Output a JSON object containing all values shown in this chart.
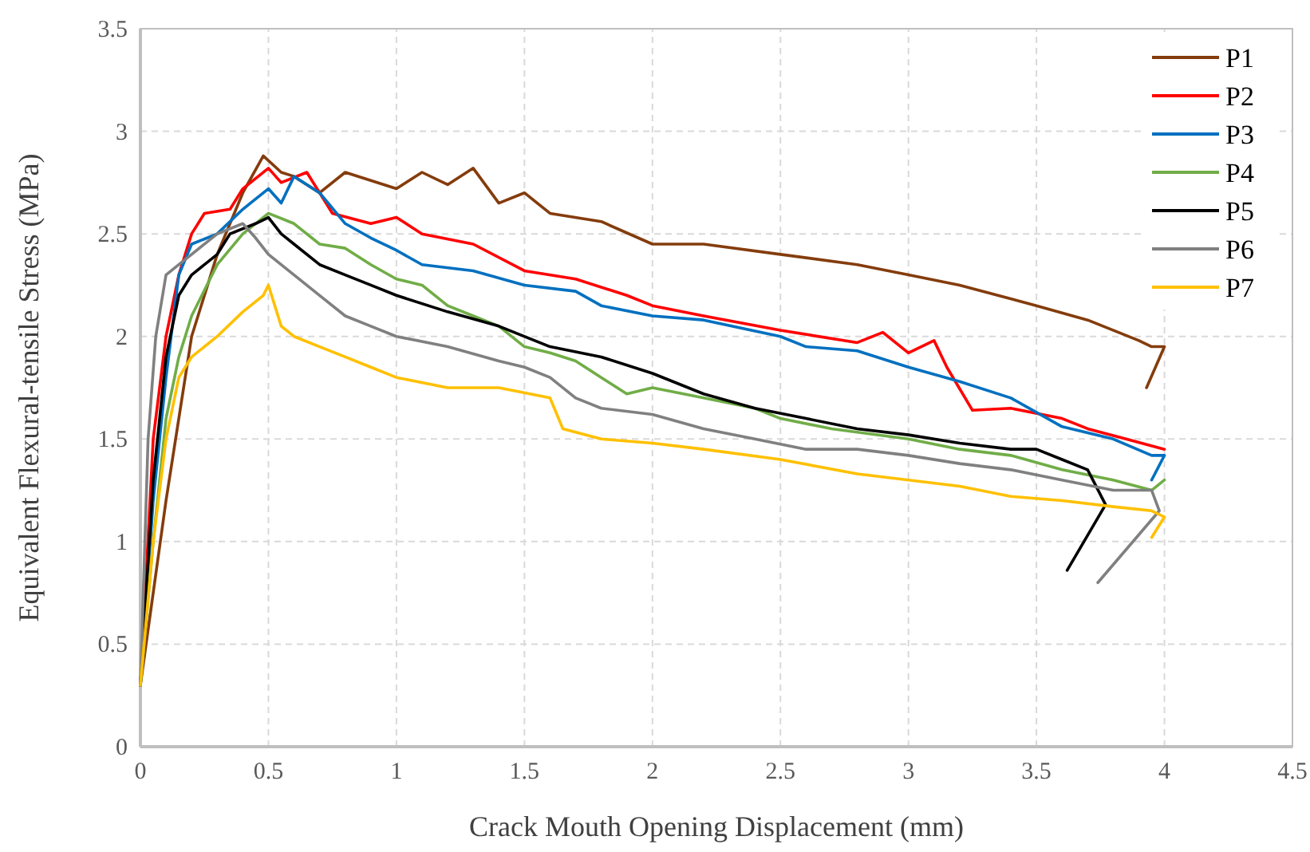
{
  "chart_data": {
    "type": "line",
    "xlabel": "Crack Mouth Opening Displacement (mm)",
    "ylabel": "Equivalent Flexural-tensile Stress (MPa)",
    "xlim": [
      0,
      4.5
    ],
    "xticks": [
      0,
      0.5,
      1,
      1.5,
      2,
      2.5,
      3,
      3.5,
      4,
      4.5
    ],
    "ylim": [
      0,
      3.5
    ],
    "yticks": [
      0,
      0.5,
      1,
      1.5,
      2,
      2.5,
      3,
      3.5
    ],
    "grid": true,
    "legend": "top right",
    "marker": "none",
    "line_style": "solid",
    "series": [
      {
        "name": "P1",
        "color": "#843c0c",
        "x": [
          0,
          0.1,
          0.2,
          0.3,
          0.4,
          0.48,
          0.55,
          0.6,
          0.7,
          0.8,
          0.9,
          1.0,
          1.1,
          1.2,
          1.3,
          1.4,
          1.5,
          1.6,
          1.8,
          2.0,
          2.2,
          2.5,
          2.8,
          3.0,
          3.2,
          3.5,
          3.7,
          3.9,
          3.95,
          4.0,
          3.93
        ],
        "values": [
          0.3,
          1.2,
          2.0,
          2.4,
          2.7,
          2.88,
          2.8,
          2.78,
          2.7,
          2.8,
          2.76,
          2.72,
          2.8,
          2.74,
          2.82,
          2.65,
          2.7,
          2.6,
          2.56,
          2.45,
          2.45,
          2.4,
          2.35,
          2.3,
          2.25,
          2.15,
          2.08,
          1.98,
          1.95,
          1.95,
          1.75
        ]
      },
      {
        "name": "P2",
        "color": "#ff0000",
        "x": [
          0,
          0.05,
          0.1,
          0.15,
          0.2,
          0.25,
          0.35,
          0.4,
          0.5,
          0.55,
          0.65,
          0.75,
          0.9,
          1.0,
          1.1,
          1.3,
          1.5,
          1.7,
          1.9,
          2.0,
          2.2,
          2.5,
          2.8,
          2.9,
          3.0,
          3.1,
          3.15,
          3.25,
          3.4,
          3.6,
          3.7,
          3.85,
          4.0
        ],
        "values": [
          0.3,
          1.5,
          2.0,
          2.3,
          2.5,
          2.6,
          2.62,
          2.72,
          2.82,
          2.75,
          2.8,
          2.6,
          2.55,
          2.58,
          2.5,
          2.45,
          2.32,
          2.28,
          2.2,
          2.15,
          2.1,
          2.03,
          1.97,
          2.02,
          1.92,
          1.98,
          1.85,
          1.64,
          1.65,
          1.6,
          1.55,
          1.5,
          1.45
        ]
      },
      {
        "name": "P3",
        "color": "#0070c0",
        "x": [
          0,
          0.05,
          0.1,
          0.15,
          0.2,
          0.3,
          0.4,
          0.5,
          0.55,
          0.6,
          0.7,
          0.8,
          0.9,
          1.0,
          1.1,
          1.3,
          1.5,
          1.7,
          1.8,
          2.0,
          2.2,
          2.5,
          2.6,
          2.8,
          3.0,
          3.2,
          3.4,
          3.6,
          3.8,
          3.95,
          4.0,
          3.95
        ],
        "values": [
          0.3,
          1.2,
          1.8,
          2.3,
          2.45,
          2.5,
          2.62,
          2.72,
          2.65,
          2.78,
          2.7,
          2.55,
          2.48,
          2.42,
          2.35,
          2.32,
          2.25,
          2.22,
          2.15,
          2.1,
          2.08,
          2.0,
          1.95,
          1.93,
          1.85,
          1.78,
          1.7,
          1.56,
          1.5,
          1.42,
          1.42,
          1.3
        ]
      },
      {
        "name": "P4",
        "color": "#70ad47",
        "x": [
          0,
          0.05,
          0.1,
          0.15,
          0.2,
          0.3,
          0.4,
          0.5,
          0.6,
          0.7,
          0.8,
          0.9,
          1.0,
          1.1,
          1.2,
          1.3,
          1.4,
          1.5,
          1.6,
          1.7,
          1.8,
          1.9,
          2.0,
          2.2,
          2.4,
          2.5,
          2.7,
          3.0,
          3.2,
          3.4,
          3.6,
          3.8,
          3.95,
          4.0
        ],
        "values": [
          0.3,
          1.0,
          1.6,
          1.9,
          2.1,
          2.35,
          2.5,
          2.6,
          2.55,
          2.45,
          2.43,
          2.35,
          2.28,
          2.25,
          2.15,
          2.1,
          2.05,
          1.95,
          1.92,
          1.88,
          1.8,
          1.72,
          1.75,
          1.7,
          1.65,
          1.6,
          1.55,
          1.5,
          1.45,
          1.42,
          1.35,
          1.3,
          1.25,
          1.3
        ]
      },
      {
        "name": "P5",
        "color": "#000000",
        "x": [
          0,
          0.05,
          0.1,
          0.15,
          0.2,
          0.3,
          0.35,
          0.45,
          0.5,
          0.55,
          0.6,
          0.7,
          0.8,
          0.9,
          1.0,
          1.2,
          1.4,
          1.6,
          1.8,
          2.0,
          2.2,
          2.4,
          2.6,
          2.8,
          3.0,
          3.2,
          3.4,
          3.5,
          3.6,
          3.7,
          3.77,
          3.62
        ],
        "values": [
          0.3,
          1.3,
          1.9,
          2.2,
          2.3,
          2.4,
          2.5,
          2.55,
          2.58,
          2.5,
          2.45,
          2.35,
          2.3,
          2.25,
          2.2,
          2.12,
          2.05,
          1.95,
          1.9,
          1.82,
          1.72,
          1.65,
          1.6,
          1.55,
          1.52,
          1.48,
          1.45,
          1.45,
          1.4,
          1.35,
          1.18,
          0.86
        ]
      },
      {
        "name": "P6",
        "color": "#808080",
        "x": [
          0,
          0.03,
          0.06,
          0.1,
          0.15,
          0.2,
          0.3,
          0.4,
          0.45,
          0.5,
          0.6,
          0.7,
          0.8,
          0.9,
          1.0,
          1.2,
          1.4,
          1.5,
          1.6,
          1.7,
          1.8,
          2.0,
          2.2,
          2.4,
          2.6,
          2.8,
          3.0,
          3.2,
          3.4,
          3.6,
          3.8,
          3.95,
          3.98,
          3.74
        ],
        "values": [
          0.3,
          1.5,
          2.0,
          2.3,
          2.35,
          2.4,
          2.5,
          2.55,
          2.48,
          2.4,
          2.3,
          2.2,
          2.1,
          2.05,
          2.0,
          1.95,
          1.88,
          1.85,
          1.8,
          1.7,
          1.65,
          1.62,
          1.55,
          1.5,
          1.45,
          1.45,
          1.42,
          1.38,
          1.35,
          1.3,
          1.25,
          1.25,
          1.15,
          0.8
        ]
      },
      {
        "name": "P7",
        "color": "#ffc000",
        "x": [
          0,
          0.05,
          0.1,
          0.15,
          0.2,
          0.3,
          0.4,
          0.48,
          0.5,
          0.55,
          0.6,
          0.7,
          0.8,
          0.9,
          1.0,
          1.2,
          1.4,
          1.6,
          1.65,
          1.8,
          2.0,
          2.2,
          2.5,
          2.8,
          3.0,
          3.2,
          3.4,
          3.6,
          3.8,
          3.95,
          4.0,
          3.95
        ],
        "values": [
          0.3,
          1.0,
          1.5,
          1.8,
          1.9,
          2.0,
          2.12,
          2.2,
          2.25,
          2.05,
          2.0,
          1.95,
          1.9,
          1.85,
          1.8,
          1.75,
          1.75,
          1.7,
          1.55,
          1.5,
          1.48,
          1.45,
          1.4,
          1.33,
          1.3,
          1.27,
          1.22,
          1.2,
          1.17,
          1.15,
          1.12,
          1.02
        ]
      }
    ]
  }
}
